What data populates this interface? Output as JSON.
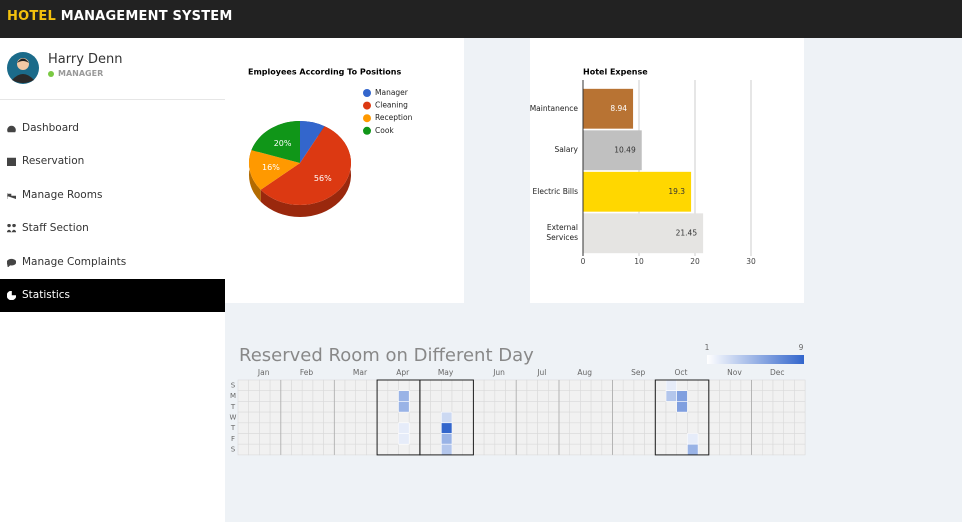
{
  "header": {
    "brand_highlight": "HOTEL",
    "brand_rest": "MANAGEMENT SYSTEM"
  },
  "sidebar": {
    "user_name": "Harry Denn",
    "role": "MANAGER",
    "nav": [
      "Dashboard",
      "Reservation",
      "Manage Rooms",
      "Staff Section",
      "Manage Complaints",
      "Statistics"
    ],
    "active": 5
  },
  "chart_data": [
    {
      "type": "pie",
      "title": "Employees According To Positions",
      "categories": [
        "Manager",
        "Cleaning",
        "Reception",
        "Cook"
      ],
      "values": [
        8,
        56,
        16,
        20
      ],
      "value_labels": [
        null,
        "56%",
        "16%",
        "20%"
      ],
      "colors": [
        "#3366cc",
        "#dc3912",
        "#ff9900",
        "#109618"
      ],
      "legend": "right"
    },
    {
      "type": "bar",
      "orientation": "horizontal",
      "title": "Hotel Expense",
      "categories": [
        "Maintanence",
        "Salary",
        "Electric Bills",
        "External Services"
      ],
      "values": [
        8.94,
        10.49,
        19.3,
        21.45
      ],
      "colors": [
        "#b87333",
        "#c0c0c0",
        "#ffd700",
        "#e5e4e2"
      ],
      "xlim": [
        0,
        30
      ],
      "xticks": [
        0,
        10,
        20,
        30
      ],
      "grid": true
    },
    {
      "type": "calendar",
      "title": "Reserved Room on Different Day",
      "months": [
        "Jan",
        "Feb",
        "Mar",
        "Apr",
        "May",
        "Jun",
        "Jul",
        "Aug",
        "Sep",
        "Oct",
        "Nov",
        "Dec"
      ],
      "days": [
        "S",
        "M",
        "T",
        "W",
        "T",
        "F",
        "S"
      ],
      "color_axis": {
        "min": 1,
        "max": 9,
        "colors": [
          "#ffffff",
          "#3366cc"
        ]
      },
      "cells": [
        {
          "week": 15,
          "day": 1,
          "value": 5
        },
        {
          "week": 15,
          "day": 2,
          "value": 5
        },
        {
          "week": 15,
          "day": 4,
          "value": 2
        },
        {
          "week": 15,
          "day": 5,
          "value": 2
        },
        {
          "week": 19,
          "day": 3,
          "value": 3
        },
        {
          "week": 19,
          "day": 4,
          "value": 9
        },
        {
          "week": 19,
          "day": 5,
          "value": 5
        },
        {
          "week": 19,
          "day": 6,
          "value": 4
        },
        {
          "week": 40,
          "day": 0,
          "value": 2
        },
        {
          "week": 40,
          "day": 1,
          "value": 4
        },
        {
          "week": 41,
          "day": 1,
          "value": 6
        },
        {
          "week": 41,
          "day": 2,
          "value": 6
        },
        {
          "week": 42,
          "day": 5,
          "value": 2
        },
        {
          "week": 42,
          "day": 6,
          "value": 5
        }
      ]
    }
  ]
}
